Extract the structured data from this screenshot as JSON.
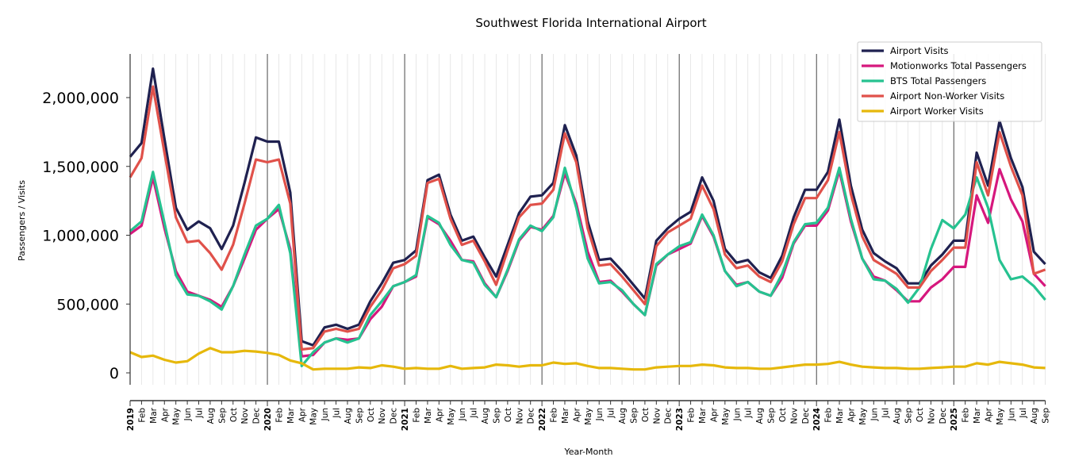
{
  "chart_data": {
    "type": "line",
    "title": "Southwest Florida International Airport",
    "xlabel": "Year-Month",
    "ylabel": "Passengers / Visits",
    "ylim": [
      -80000,
      2320000
    ],
    "yticks": [
      0,
      500000,
      1000000,
      1500000,
      2000000
    ],
    "ytick_labels": [
      "0",
      "500,000",
      "1,000,000",
      "1,500,000",
      "2,000,000"
    ],
    "grid": "vertical monthly",
    "legend_position": "top-right",
    "x_labels": [
      "2019",
      "Feb",
      "Mar",
      "Apr",
      "May",
      "Jun",
      "Jul",
      "Aug",
      "Sep",
      "Oct",
      "Nov",
      "Dec",
      "2020",
      "Feb",
      "Mar",
      "Apr",
      "May",
      "Jun",
      "Jul",
      "Aug",
      "Sep",
      "Oct",
      "Nov",
      "Dec",
      "2021",
      "Feb",
      "Mar",
      "Apr",
      "May",
      "Jun",
      "Jul",
      "Aug",
      "Sep",
      "Oct",
      "Nov",
      "Dec",
      "2022",
      "Feb",
      "Mar",
      "Apr",
      "May",
      "Jun",
      "Jul",
      "Aug",
      "Sep",
      "Oct",
      "Nov",
      "Dec",
      "2023",
      "Feb",
      "Mar",
      "Apr",
      "May",
      "Jun",
      "Jul",
      "Aug",
      "Sep",
      "Oct",
      "Nov",
      "Dec",
      "2024",
      "Feb",
      "Mar",
      "Apr",
      "May",
      "Jun",
      "Jul",
      "Aug",
      "Sep",
      "Oct",
      "Nov",
      "Dec",
      "2025",
      "Feb",
      "Mar",
      "Apr",
      "May",
      "Jun",
      "Jul",
      "Aug",
      "Sep"
    ],
    "series": [
      {
        "name": "Airport Visits",
        "color": "#1f2150",
        "values": [
          1570000,
          1670000,
          2210000,
          1700000,
          1200000,
          1040000,
          1100000,
          1050000,
          900000,
          1070000,
          1380000,
          1710000,
          1680000,
          1680000,
          1310000,
          230000,
          200000,
          330000,
          350000,
          320000,
          350000,
          520000,
          650000,
          800000,
          820000,
          890000,
          1400000,
          1440000,
          1150000,
          960000,
          990000,
          840000,
          700000,
          930000,
          1160000,
          1280000,
          1290000,
          1380000,
          1800000,
          1580000,
          1100000,
          820000,
          830000,
          740000,
          640000,
          540000,
          960000,
          1050000,
          1120000,
          1170000,
          1420000,
          1250000,
          900000,
          800000,
          820000,
          730000,
          690000,
          850000,
          1130000,
          1330000,
          1330000,
          1460000,
          1840000,
          1360000,
          1040000,
          870000,
          810000,
          760000,
          650000,
          650000,
          780000,
          860000,
          960000,
          960000,
          1600000,
          1360000,
          1830000,
          1560000,
          1350000,
          880000,
          790000
        ]
      },
      {
        "name": "Motionworks Total Passengers",
        "color": "#d6177d",
        "values": [
          1010000,
          1070000,
          1420000,
          1050000,
          740000,
          590000,
          560000,
          530000,
          480000,
          630000,
          830000,
          1040000,
          1120000,
          1190000,
          900000,
          120000,
          130000,
          220000,
          250000,
          240000,
          250000,
          390000,
          480000,
          630000,
          660000,
          700000,
          1130000,
          1080000,
          960000,
          820000,
          810000,
          650000,
          550000,
          740000,
          960000,
          1060000,
          1040000,
          1140000,
          1450000,
          1230000,
          880000,
          660000,
          670000,
          590000,
          500000,
          420000,
          780000,
          860000,
          900000,
          940000,
          1140000,
          990000,
          740000,
          640000,
          660000,
          590000,
          560000,
          690000,
          940000,
          1070000,
          1070000,
          1180000,
          1470000,
          1100000,
          830000,
          700000,
          670000,
          600000,
          520000,
          520000,
          620000,
          680000,
          770000,
          770000,
          1290000,
          1090000,
          1480000,
          1260000,
          1100000,
          720000,
          630000
        ]
      },
      {
        "name": "BTS Total Passengers",
        "color": "#26c290",
        "values": [
          1030000,
          1100000,
          1460000,
          1090000,
          710000,
          570000,
          560000,
          520000,
          460000,
          630000,
          860000,
          1070000,
          1120000,
          1220000,
          870000,
          50000,
          150000,
          220000,
          250000,
          220000,
          250000,
          420000,
          520000,
          630000,
          660000,
          710000,
          1140000,
          1090000,
          930000,
          820000,
          800000,
          640000,
          550000,
          750000,
          970000,
          1070000,
          1030000,
          1130000,
          1490000,
          1200000,
          830000,
          650000,
          660000,
          600000,
          500000,
          420000,
          790000,
          860000,
          920000,
          950000,
          1150000,
          1000000,
          740000,
          630000,
          660000,
          590000,
          560000,
          720000,
          950000,
          1080000,
          1090000,
          1200000,
          1490000,
          1120000,
          830000,
          680000,
          670000,
          610000,
          510000,
          620000,
          900000,
          1110000,
          1050000,
          1150000,
          1420000,
          1200000,
          820000,
          680000,
          700000,
          630000,
          530000
        ]
      },
      {
        "name": "Airport Non-Worker Visits",
        "color": "#e0514a",
        "values": [
          1420000,
          1560000,
          2080000,
          1600000,
          1130000,
          950000,
          960000,
          870000,
          750000,
          930000,
          1230000,
          1550000,
          1530000,
          1550000,
          1230000,
          170000,
          180000,
          300000,
          320000,
          300000,
          320000,
          480000,
          600000,
          760000,
          790000,
          850000,
          1380000,
          1410000,
          1120000,
          930000,
          960000,
          810000,
          640000,
          890000,
          1130000,
          1220000,
          1230000,
          1330000,
          1740000,
          1530000,
          1050000,
          780000,
          790000,
          700000,
          600000,
          500000,
          920000,
          1020000,
          1070000,
          1120000,
          1360000,
          1190000,
          860000,
          760000,
          780000,
          700000,
          660000,
          810000,
          1080000,
          1270000,
          1270000,
          1400000,
          1750000,
          1300000,
          990000,
          820000,
          770000,
          720000,
          620000,
          620000,
          740000,
          820000,
          910000,
          910000,
          1530000,
          1290000,
          1750000,
          1500000,
          1290000,
          720000,
          750000
        ]
      },
      {
        "name": "Airport Worker Visits",
        "color": "#e6b80b",
        "values": [
          150000,
          115000,
          125000,
          95000,
          75000,
          85000,
          140000,
          180000,
          150000,
          150000,
          160000,
          155000,
          145000,
          130000,
          90000,
          70000,
          25000,
          30000,
          30000,
          30000,
          40000,
          35000,
          55000,
          45000,
          30000,
          35000,
          30000,
          30000,
          50000,
          30000,
          35000,
          40000,
          60000,
          55000,
          45000,
          55000,
          55000,
          75000,
          65000,
          70000,
          50000,
          35000,
          35000,
          30000,
          25000,
          25000,
          40000,
          45000,
          50000,
          50000,
          60000,
          55000,
          40000,
          35000,
          35000,
          30000,
          30000,
          40000,
          50000,
          60000,
          60000,
          65000,
          80000,
          60000,
          45000,
          40000,
          35000,
          35000,
          30000,
          30000,
          35000,
          40000,
          45000,
          45000,
          70000,
          60000,
          80000,
          70000,
          60000,
          40000,
          35000
        ]
      }
    ]
  }
}
